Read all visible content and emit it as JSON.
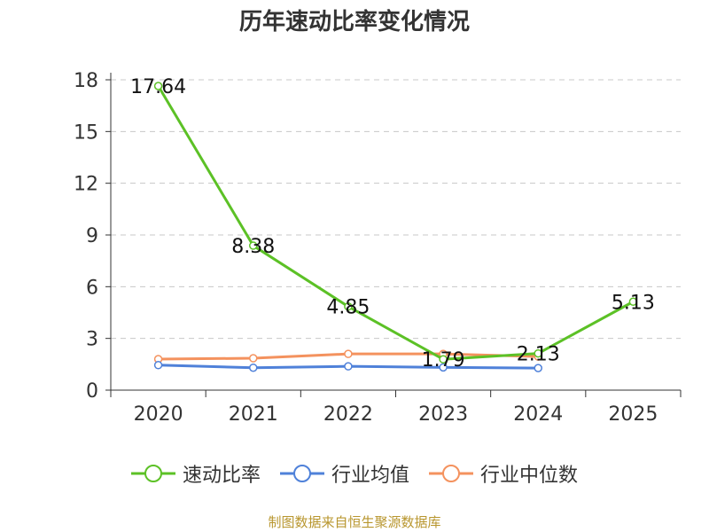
{
  "chart_data": {
    "type": "line",
    "title": "历年速动比率变化情况",
    "categories": [
      "2020",
      "2021",
      "2022",
      "2023",
      "2024",
      "2025"
    ],
    "ylim": [
      0,
      18
    ],
    "yticks": [
      0,
      3,
      6,
      9,
      12,
      15,
      18
    ],
    "grid": true,
    "legend_position": "bottom",
    "series": [
      {
        "name": "速动比率",
        "color": "#5cc126",
        "values": [
          17.64,
          8.38,
          4.85,
          1.79,
          2.13,
          5.13
        ],
        "labels": [
          "17.64",
          "8.38",
          "4.85",
          "1.79",
          "2.13",
          "5.13"
        ]
      },
      {
        "name": "行业均值",
        "color": "#4f81d9",
        "values": [
          1.45,
          1.3,
          1.38,
          1.32,
          1.28,
          null
        ]
      },
      {
        "name": "行业中位数",
        "color": "#f4925e",
        "values": [
          1.8,
          1.85,
          2.1,
          2.1,
          1.95,
          null
        ]
      }
    ]
  },
  "source": "制图数据来自恒生聚源数据库"
}
